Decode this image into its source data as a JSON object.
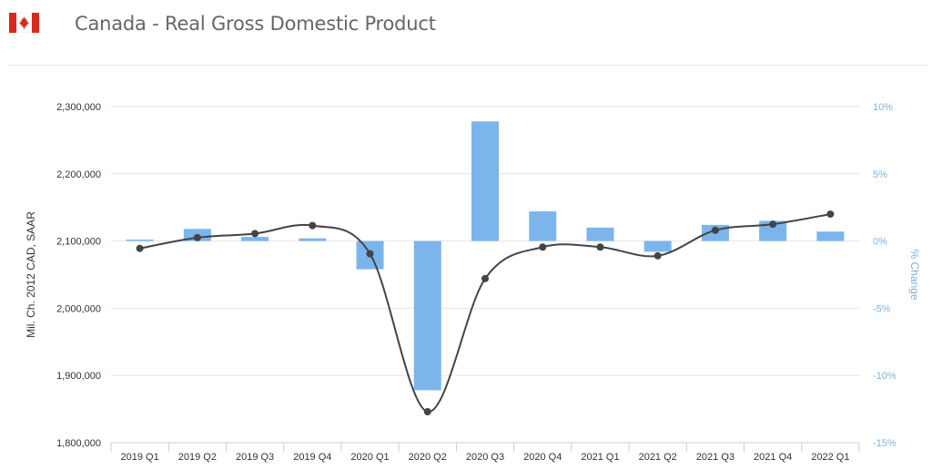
{
  "header": {
    "title": "Canada - Real Gross Domestic Product",
    "flag_icon": "canada-flag-icon"
  },
  "colors": {
    "bar": "#7cb5ec",
    "line": "#434348",
    "grid": "#e6e6e6",
    "right_axis_text": "#7db3e0",
    "flag_red": "#d52b1e"
  },
  "chart_data": {
    "type": "bar+line",
    "categories": [
      "2019 Q1",
      "2019 Q2",
      "2019 Q3",
      "2019 Q4",
      "2020 Q1",
      "2020 Q2",
      "2020 Q3",
      "2020 Q4",
      "2021 Q1",
      "2021 Q2",
      "2021 Q3",
      "2021 Q4",
      "2022 Q1"
    ],
    "series": [
      {
        "type": "line",
        "axis": "left",
        "values": [
          2089000,
          2105000,
          2111000,
          2123000,
          2081000,
          1846000,
          2044000,
          2091000,
          2091000,
          2078000,
          2116000,
          2125000,
          2140000
        ]
      },
      {
        "type": "bar",
        "axis": "right",
        "values": [
          0.1,
          0.9,
          0.3,
          0.2,
          -2.1,
          -11.1,
          8.9,
          2.2,
          1.0,
          -0.8,
          1.2,
          1.5,
          0.7
        ]
      }
    ],
    "left_axis": {
      "label": "Mil. Ch. 2012 CAD, SAAR",
      "min": 1800000,
      "max": 2300000,
      "ticks": [
        "1,800,000",
        "1,900,000",
        "2,000,000",
        "2,100,000",
        "2,200,000",
        "2,300,000"
      ]
    },
    "right_axis": {
      "label": "% Change",
      "min": -15,
      "max": 10,
      "ticks": [
        "10%",
        "5%",
        "0%",
        "-5%",
        "-10%",
        "-15%"
      ]
    },
    "grid": true,
    "legend": "none"
  }
}
